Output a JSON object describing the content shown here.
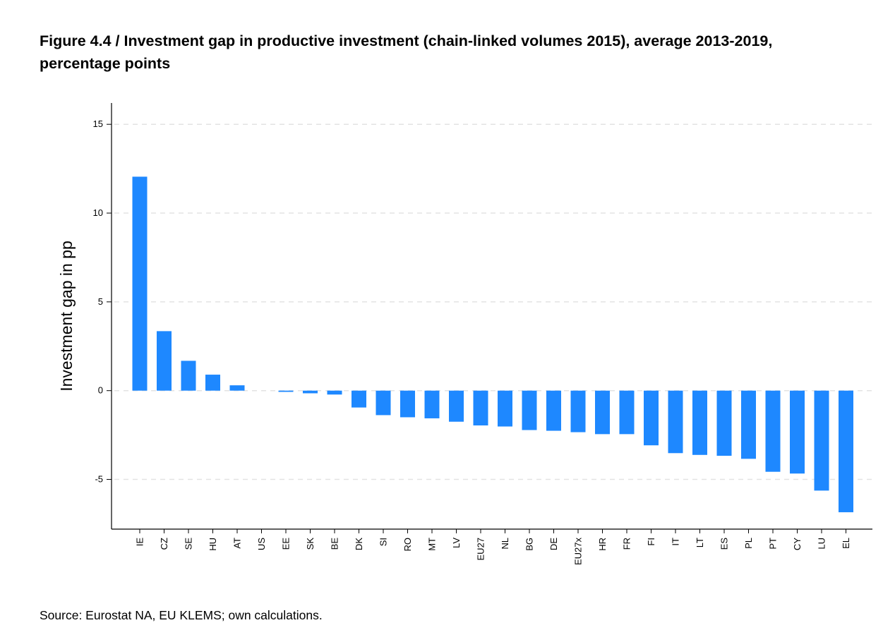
{
  "title_line1": "Figure 4.4 / Investment gap in productive investment (chain-linked volumes 2015), average 2013-2019,",
  "title_line2": "percentage points",
  "source": "Source: Eurostat NA, EU KLEMS; own calculations.",
  "colors": {
    "bar": "#1e88ff",
    "grid": "#e3e3e3",
    "axis": "#000000"
  },
  "chart_data": {
    "type": "bar",
    "ylabel": "Investment gap in pp",
    "xlabel": "",
    "ylim": [
      -7.8,
      16.2
    ],
    "yticks": [
      15,
      10,
      5,
      0,
      -5
    ],
    "ytick_labels": [
      "15",
      "10",
      "5",
      "0",
      "-5"
    ],
    "grid": "horizontal dashed",
    "categories": [
      "IE",
      "CZ",
      "SE",
      "HU",
      "AT",
      "US",
      "EE",
      "SK",
      "BE",
      "DK",
      "SI",
      "RO",
      "MT",
      "LV",
      "EU27",
      "NL",
      "BG",
      "DE",
      "EU27x",
      "HR",
      "FR",
      "FI",
      "IT",
      "LT",
      "ES",
      "PL",
      "PT",
      "CY",
      "LU",
      "EL"
    ],
    "values": [
      12.05,
      3.35,
      1.68,
      0.9,
      0.3,
      0.0,
      -0.07,
      -0.15,
      -0.22,
      -0.95,
      -1.38,
      -1.5,
      -1.56,
      -1.75,
      -1.96,
      -2.02,
      -2.22,
      -2.26,
      -2.34,
      -2.45,
      -2.45,
      -3.08,
      -3.52,
      -3.62,
      -3.67,
      -3.84,
      -4.57,
      -4.67,
      -5.63,
      -6.85
    ]
  }
}
